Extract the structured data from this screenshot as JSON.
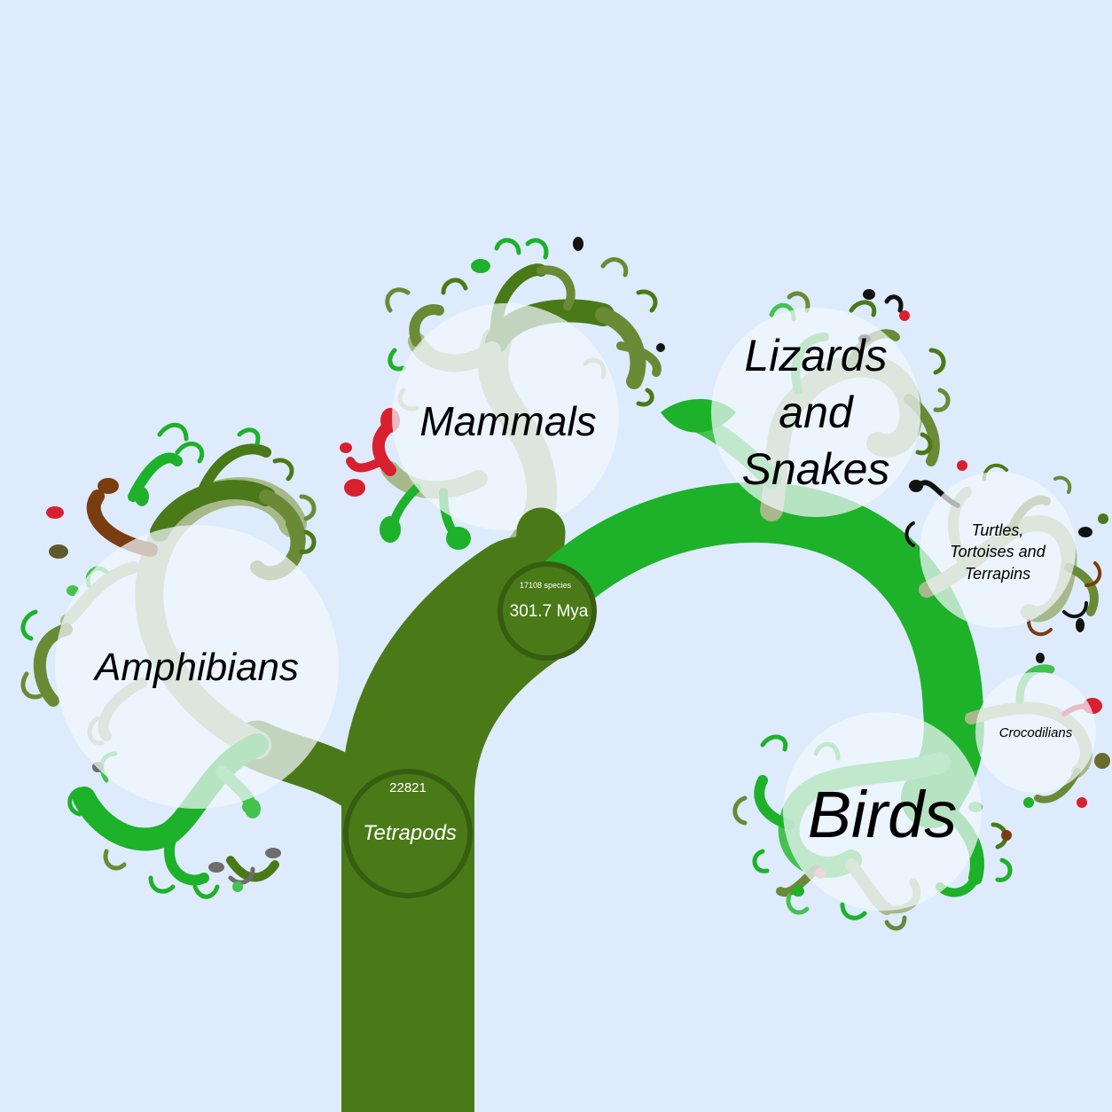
{
  "colors": {
    "background": "#deebfc",
    "trunk_dark": "#4a7a18",
    "bright_green": "#1eb12a",
    "pale_olive": "#a7b98a",
    "mid_olive": "#6b8a35",
    "light_green": "#44c24e",
    "red": "#d9202f",
    "brown": "#7a3d10",
    "grey": "#6d6d6d",
    "black": "#111111",
    "label_halo": "#f1f6fe"
  },
  "nodes": {
    "tetrapods": {
      "count": "22821",
      "name": "Tetrapods"
    },
    "amniotes": {
      "count": "17108 species",
      "age": "301.7 Mya"
    }
  },
  "clades": {
    "amphibians": "Amphibians",
    "mammals": "Mammals",
    "lizards_line1": "Lizards",
    "lizards_line2": "and",
    "lizards_line3": "Snakes",
    "turtles_line1": "Turtles,",
    "turtles_line2": "Tortoises and",
    "turtles_line3": "Terrapins",
    "crocodilians": "Crocodilians",
    "birds": "Birds"
  }
}
